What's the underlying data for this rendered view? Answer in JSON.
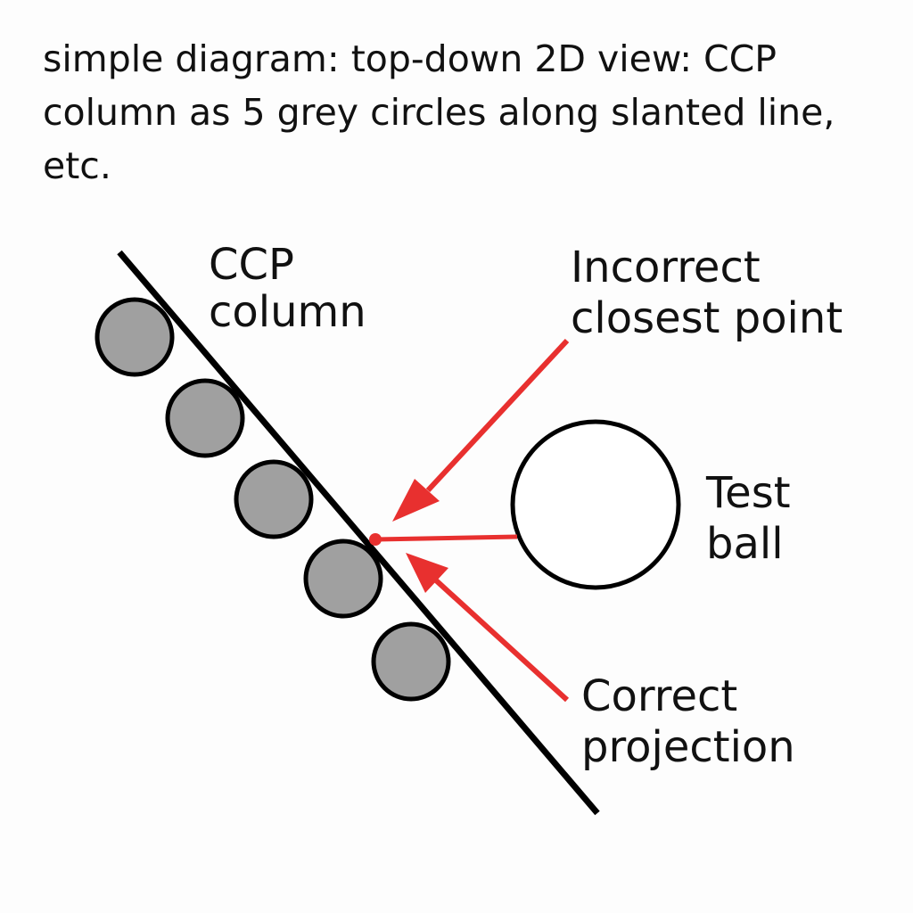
{
  "caption": {
    "lines": [
      "simple diagram: top-down 2D view: CCP",
      "column as 5 grey circles along slanted line,",
      "etc."
    ]
  },
  "diagram": {
    "labels": {
      "ccp_column": [
        "CCP",
        "column"
      ],
      "incorrect_closest_point": [
        "Incorrect",
        "closest point"
      ],
      "test_ball": [
        "Test",
        "ball"
      ],
      "correct_projection": [
        "Correct",
        "projection"
      ]
    },
    "column_circle_count": 5,
    "colors": {
      "line": "#000000",
      "circle_fill": "#a0a0a0",
      "circle_stroke": "#000000",
      "arrow": "#e8302f",
      "test_ball_fill": "#ffffff"
    }
  }
}
